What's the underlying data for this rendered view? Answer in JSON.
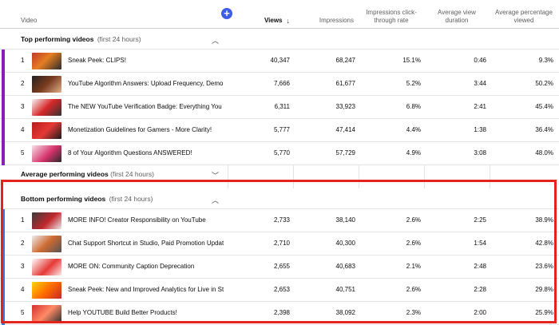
{
  "header": {
    "video": "Video",
    "views": "Views",
    "impressions": "Impressions",
    "ctr": "Impressions click-through rate",
    "avg_duration": "Average view duration",
    "avg_pct": "Average percentage viewed"
  },
  "top": {
    "title": "Top performing videos",
    "sub": "(first 24 hours)",
    "rows": [
      {
        "n": "1",
        "title": "Sneak Peek: CLIPS!",
        "views": "40,347",
        "imp": "68,247",
        "ctr": "15.1%",
        "dur": "0:46",
        "pct": "9.3%"
      },
      {
        "n": "2",
        "title": "YouTube Algorithm Answers: Upload Frequency, Demon...",
        "views": "7,666",
        "imp": "61,677",
        "ctr": "5.2%",
        "dur": "3:44",
        "pct": "50.2%"
      },
      {
        "n": "3",
        "title": "The NEW YouTube Verification Badge: Everything You N...",
        "views": "6,311",
        "imp": "33,923",
        "ctr": "6.8%",
        "dur": "2:41",
        "pct": "45.4%"
      },
      {
        "n": "4",
        "title": "Monetization Guidelines for Gamers - More Clarity!",
        "views": "5,777",
        "imp": "47,414",
        "ctr": "4.4%",
        "dur": "1:38",
        "pct": "36.4%"
      },
      {
        "n": "5",
        "title": "8 of Your Algorithm Questions ANSWERED!",
        "views": "5,770",
        "imp": "57,729",
        "ctr": "4.9%",
        "dur": "3:08",
        "pct": "48.0%"
      }
    ]
  },
  "average": {
    "title": "Average performing videos",
    "sub": "(first 24 hours)"
  },
  "bottom": {
    "title": "Bottom performing videos",
    "sub": "(first 24 hours)",
    "rows": [
      {
        "n": "1",
        "title": "MORE INFO! Creator Responsibility on YouTube",
        "views": "2,733",
        "imp": "38,140",
        "ctr": "2.6%",
        "dur": "2:25",
        "pct": "38.9%"
      },
      {
        "n": "2",
        "title": "Chat Support Shortcut in Studio, Paid Promotion Updat...",
        "views": "2,710",
        "imp": "40,300",
        "ctr": "2.6%",
        "dur": "1:54",
        "pct": "42.8%"
      },
      {
        "n": "3",
        "title": "MORE ON: Community Caption Deprecation",
        "views": "2,655",
        "imp": "40,683",
        "ctr": "2.1%",
        "dur": "2:48",
        "pct": "23.6%"
      },
      {
        "n": "4",
        "title": "Sneak Peek: New and Improved Analytics for Live in Stu...",
        "views": "2,653",
        "imp": "40,751",
        "ctr": "2.6%",
        "dur": "2:28",
        "pct": "29.8%"
      },
      {
        "n": "5",
        "title": "Help YOUTUBE Build Better Products!",
        "views": "2,398",
        "imp": "38,092",
        "ctr": "2.3%",
        "dur": "2:00",
        "pct": "25.9%"
      }
    ]
  },
  "colors": {
    "top_bar": "#8b1fb5",
    "bottom_bar": "#3a78d8",
    "highlight": "#e5231d",
    "add_button": "#3e5ee7"
  }
}
